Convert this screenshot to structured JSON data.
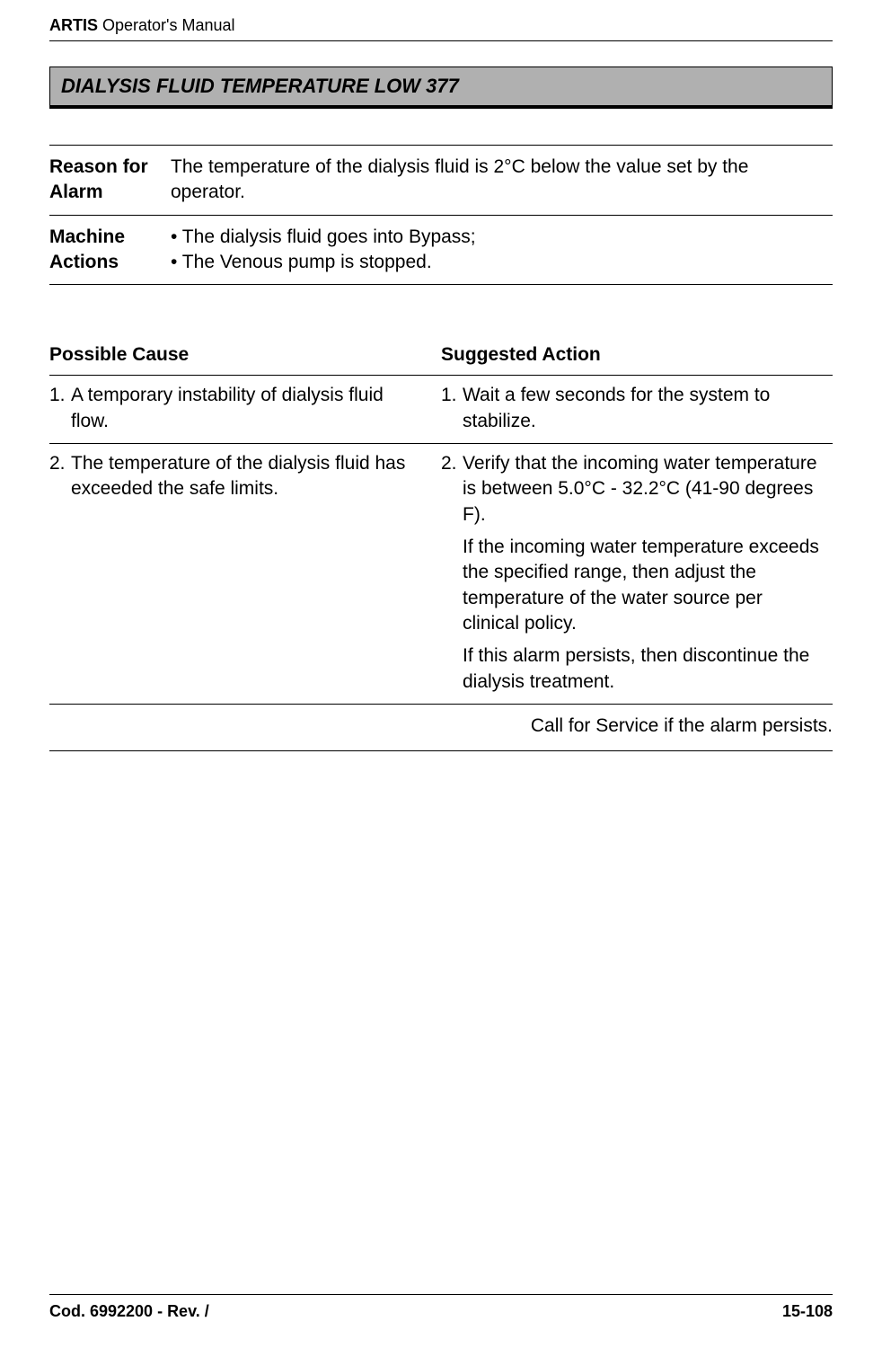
{
  "header": {
    "product": "ARTIS",
    "doc_title": " Operator's Manual"
  },
  "title_bar": "DIALYSIS FLUID TEMPERATURE LOW 377",
  "info": {
    "reason_label": "Reason for Alarm",
    "reason_text": "The temperature of the dialysis fluid is 2°C below the value set by the operator.",
    "actions_label": "Machine Actions",
    "action1": "• The dialysis fluid goes into Bypass;",
    "action2": "• The Venous pump is stopped."
  },
  "cause_header": {
    "left": "Possible Cause",
    "right": "Suggested Action"
  },
  "rows": [
    {
      "cause_n": "1.",
      "cause_t": "A temporary instability of dialysis fluid flow.",
      "action_n": "1.",
      "action_t": "Wait a few seconds for the system to stabilize."
    },
    {
      "cause_n": "2.",
      "cause_t": "The temperature of the dialysis fluid has exceeded the safe limits.",
      "action_n": "2.",
      "action_t": "Verify that the incoming water temperature is between 5.0°C - 32.2°C (41-90 degrees F).",
      "extra1": "If the incoming water temperature exceeds the specified range, then adjust the temperature of the water source per clinical policy.",
      "extra2": "If this alarm persists, then discontinue the dialysis treatment."
    }
  ],
  "service_text": "Call for Service if the alarm persists.",
  "footer": {
    "left": "Cod. 6992200 - Rev. /",
    "right": "15-108"
  },
  "colors": {
    "title_bg": "#b0b0b0",
    "text": "#000000",
    "page_bg": "#ffffff"
  }
}
